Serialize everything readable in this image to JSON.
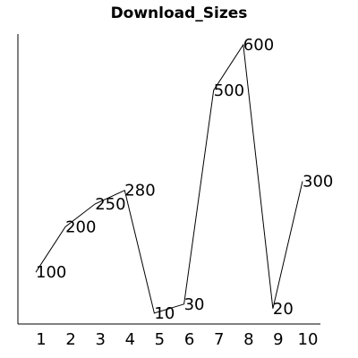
{
  "chart_data": {
    "type": "line",
    "title": "Download_Sizes",
    "xlabel": "",
    "ylabel": "",
    "x": [
      1,
      2,
      3,
      4,
      5,
      6,
      7,
      8,
      9,
      10
    ],
    "values": [
      100,
      200,
      250,
      280,
      10,
      30,
      500,
      600,
      20,
      300
    ],
    "data_labels": [
      "100",
      "200",
      "250",
      "280",
      "10",
      "30",
      "500",
      "600",
      "20",
      "300"
    ],
    "tick_labels": [
      "1",
      "2",
      "3",
      "4",
      "5",
      "6",
      "7",
      "8",
      "9",
      "10"
    ],
    "ylim": [
      0,
      600
    ],
    "grid": false,
    "legend": "none",
    "colors": {
      "line": "#000000",
      "text": "#000000",
      "background": "#ffffff"
    }
  }
}
